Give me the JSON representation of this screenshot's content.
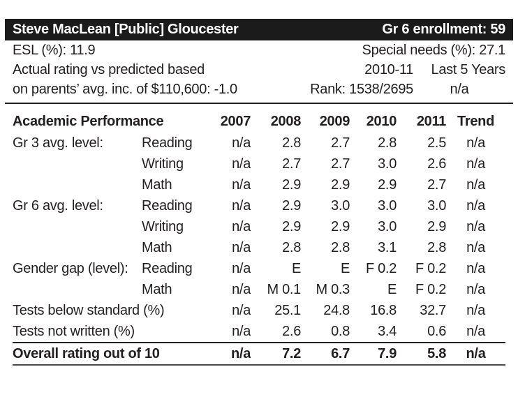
{
  "header": {
    "school": "Steve MacLean [Public] Gloucester",
    "enrollment": "Gr 6 enrollment: 59"
  },
  "info": {
    "esl": "ESL (%): 11.9",
    "special_needs": "Special needs (%): 27.1",
    "rating_line1": "Actual rating vs predicted based",
    "rating_line2": "on parents’ avg. inc. of $110,600: -1.0",
    "period_current": "2010-11",
    "period_last5": "Last 5 Years",
    "rank": "Rank: 1538/2695",
    "rank_last5": "n/a"
  },
  "table": {
    "header": [
      "Academic Performance",
      "2007",
      "2008",
      "2009",
      "2010",
      "2011",
      "Trend"
    ],
    "rows": [
      {
        "group": "Gr 3 avg. level:",
        "label": "Reading",
        "span": false,
        "values": [
          "n/a",
          "2.8",
          "2.7",
          "2.8",
          "2.5",
          "n/a"
        ]
      },
      {
        "group": "",
        "label": "Writing",
        "span": false,
        "values": [
          "n/a",
          "2.7",
          "2.7",
          "3.0",
          "2.6",
          "n/a"
        ]
      },
      {
        "group": "",
        "label": "Math",
        "span": false,
        "values": [
          "n/a",
          "2.9",
          "2.9",
          "2.9",
          "2.7",
          "n/a"
        ]
      },
      {
        "group": "Gr 6 avg. level:",
        "label": "Reading",
        "span": false,
        "values": [
          "n/a",
          "2.9",
          "3.0",
          "3.0",
          "3.0",
          "n/a"
        ]
      },
      {
        "group": "",
        "label": "Writing",
        "span": false,
        "values": [
          "n/a",
          "2.9",
          "2.9",
          "3.0",
          "2.9",
          "n/a"
        ]
      },
      {
        "group": "",
        "label": "Math",
        "span": false,
        "values": [
          "n/a",
          "2.8",
          "2.8",
          "3.1",
          "2.8",
          "n/a"
        ]
      },
      {
        "group": "Gender gap (level):",
        "label": "Reading",
        "span": false,
        "values": [
          "n/a",
          "E",
          "E",
          "F 0.2",
          "F 0.2",
          "n/a"
        ]
      },
      {
        "group": "",
        "label": "Math",
        "span": false,
        "values": [
          "n/a",
          "M 0.1",
          "M 0.3",
          "E",
          "F 0.2",
          "n/a"
        ]
      },
      {
        "group": "Tests below standard (%)",
        "label": "",
        "span": true,
        "values": [
          "n/a",
          "25.1",
          "24.8",
          "16.8",
          "32.7",
          "n/a"
        ]
      },
      {
        "group": "Tests not written (%)",
        "label": "",
        "span": true,
        "values": [
          "n/a",
          "2.6",
          "0.8",
          "3.4",
          "0.6",
          "n/a"
        ]
      }
    ],
    "footer": {
      "label": "Overall rating out of 10",
      "values": [
        "n/a",
        "7.2",
        "6.7",
        "7.9",
        "5.8",
        "n/a"
      ]
    }
  },
  "colors": {
    "header_bg": "#1b1b1b",
    "header_text": "#ffffff",
    "body_text": "#231f20"
  }
}
